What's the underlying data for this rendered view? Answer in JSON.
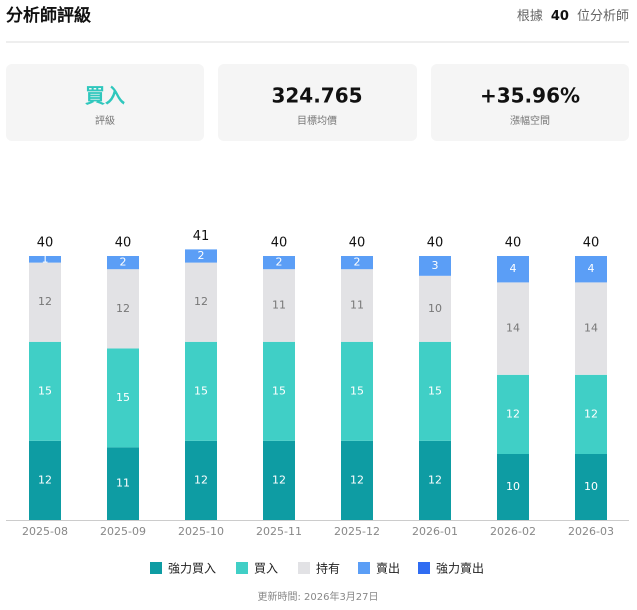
{
  "header": {
    "title": "分析師評級",
    "prefix": "根據",
    "count": "40",
    "suffix": "位分析師"
  },
  "cards": [
    {
      "value": "買入",
      "label": "評級"
    },
    {
      "value": "324.765",
      "label": "目標均價"
    },
    {
      "value": "+35.96%",
      "label": "漲幅空間"
    }
  ],
  "chart_data": {
    "type": "stacked_bar",
    "categories": [
      "2025-08",
      "2025-09",
      "2025-10",
      "2025-11",
      "2025-12",
      "2026-01",
      "2026-02",
      "2026-03"
    ],
    "totals": [
      40,
      40,
      41,
      40,
      40,
      40,
      40,
      40
    ],
    "series": [
      {
        "name": "強力買入",
        "color": "#0e9ca3",
        "label_color": "#ffffff",
        "values": [
          12,
          11,
          12,
          12,
          12,
          12,
          10,
          10
        ]
      },
      {
        "name": "買入",
        "color": "#40cfc6",
        "label_color": "#ffffff",
        "values": [
          15,
          15,
          15,
          15,
          15,
          15,
          12,
          12
        ]
      },
      {
        "name": "持有",
        "color": "#e2e2e5",
        "label_color": "#777777",
        "values": [
          12,
          12,
          12,
          11,
          11,
          10,
          14,
          14
        ]
      },
      {
        "name": "賣出",
        "color": "#5b9ef6",
        "label_color": "#ffffff",
        "values": [
          1,
          2,
          2,
          2,
          2,
          3,
          4,
          4
        ]
      },
      {
        "name": "強力賣出",
        "color": "#2f6cf2",
        "label_color": "#ffffff",
        "values": [
          0,
          0,
          0,
          0,
          0,
          0,
          0,
          0
        ]
      }
    ]
  },
  "footer": "更新時間: 2026年3月27日"
}
